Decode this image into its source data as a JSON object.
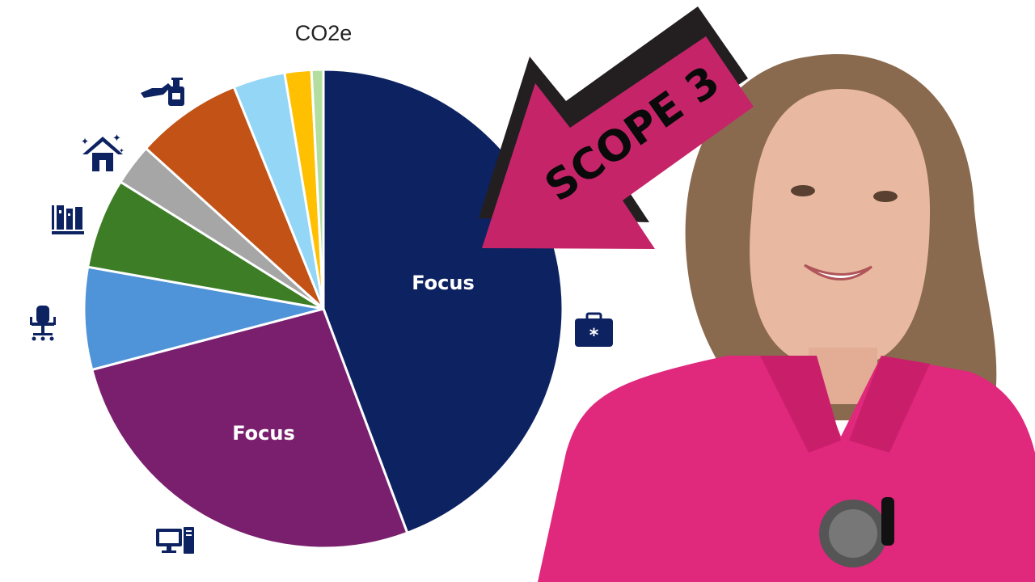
{
  "chart_data": {
    "type": "pie",
    "title": "CO2e",
    "start": "top",
    "direction": "clockwise",
    "slices": [
      {
        "value": 44.3,
        "color": "#0d2261",
        "label": "Focus",
        "icon": "medical-briefcase-icon"
      },
      {
        "value": 26.6,
        "color": "#7a1f6e",
        "label": "Focus",
        "icon": "computer-icon"
      },
      {
        "value": 6.9,
        "color": "#4f93d8",
        "label": "",
        "icon": "office-chair-icon"
      },
      {
        "value": 6.1,
        "color": "#3c7d25",
        "label": "",
        "icon": "books-icon"
      },
      {
        "value": 2.8,
        "color": "#a6a6a6",
        "label": "",
        "icon": "clean-house-icon"
      },
      {
        "value": 7.2,
        "color": "#c25216",
        "label": "",
        "icon": "hand-soap-icon"
      },
      {
        "value": 3.5,
        "color": "#93d6f6",
        "label": "",
        "icon": ""
      },
      {
        "value": 1.8,
        "color": "#fec000",
        "label": "",
        "icon": ""
      },
      {
        "value": 0.8,
        "color": "#b3dea0",
        "label": "",
        "icon": ""
      }
    ]
  },
  "callout": {
    "text": "SCOPE 3",
    "color": "#c52568",
    "shadow_color": "#231f20"
  },
  "icon_color": "#0d2261"
}
